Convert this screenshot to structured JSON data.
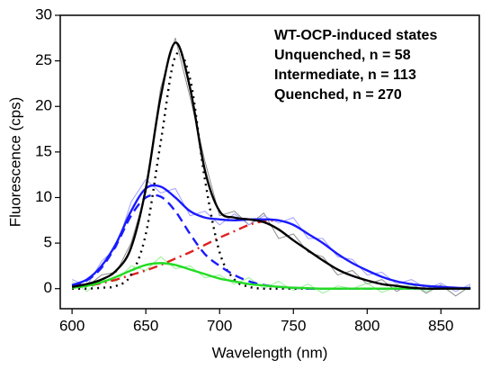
{
  "chart_data": {
    "type": "line",
    "xlabel": "Wavelength (nm)",
    "ylabel": "Fluorescence (cps)",
    "xlim": [
      592,
      876
    ],
    "ylim": [
      -2.2,
      30
    ],
    "xticks": [
      600,
      650,
      700,
      750,
      800,
      850
    ],
    "yticks": [
      0,
      5,
      10,
      15,
      20,
      25,
      30
    ],
    "legend": {
      "title": "WT-OCP-induced states",
      "entries": [
        {
          "text": "Unquenched, n = 58",
          "color": "#000000"
        },
        {
          "text": "Intermediate, n = 113",
          "color": "#1a1aff"
        },
        {
          "text": "Quenched, n =  270",
          "color": "#22dd22"
        }
      ]
    },
    "x": [
      600,
      610,
      620,
      630,
      640,
      650,
      660,
      670,
      680,
      690,
      700,
      710,
      720,
      730,
      740,
      750,
      760,
      770,
      780,
      790,
      800,
      810,
      820,
      830,
      840,
      850,
      860,
      870
    ],
    "series": [
      {
        "color": "#8c8c8c",
        "style": "raw",
        "values": [
          0.5,
          0.2,
          1.5,
          1.8,
          5,
          10.5,
          22,
          27.5,
          21,
          14,
          8,
          8.5,
          7,
          8.3,
          5.5,
          6,
          4,
          3.5,
          1.5,
          2,
          0.5,
          1,
          -0.3,
          0.6,
          -0.5,
          0.4,
          -0.8,
          0.3
        ]
      },
      {
        "color": "#a0a0ff",
        "style": "raw",
        "values": [
          1,
          0.3,
          3,
          4.5,
          9.5,
          12,
          10.5,
          11,
          8,
          8.5,
          7,
          8.2,
          7,
          8,
          7.2,
          7.8,
          5.5,
          5.5,
          3.5,
          3.2,
          1.5,
          1.8,
          0.5,
          1,
          0,
          0.6,
          -0.3,
          0.5
        ]
      },
      {
        "color": "#99ee99",
        "style": "raw",
        "values": [
          0.8,
          -0.3,
          1,
          0.8,
          2.5,
          2,
          3.5,
          2.2,
          2.5,
          1.2,
          1.5,
          0.5,
          1.2,
          0,
          0.8,
          -0.2,
          0.5,
          -0.5,
          0.3,
          0,
          0.6,
          -0.4,
          0.2,
          0.4,
          -0.3,
          0.3,
          0,
          0.2
        ]
      },
      {
        "color": "#e02020",
        "style": "dashdot",
        "values": [
          0.1,
          0.3,
          0.6,
          1,
          1.5,
          2,
          2.6,
          3.3,
          4,
          4.8,
          5.6,
          6.3,
          7,
          7.4,
          7.5,
          null,
          null,
          null,
          null,
          null,
          null,
          null,
          null,
          null,
          null,
          null,
          null,
          null
        ]
      },
      {
        "color": "#000000",
        "style": "dotted",
        "values": [
          0,
          0,
          0.1,
          0.3,
          1.5,
          6,
          16,
          25.5,
          23,
          12,
          4,
          1,
          0.2,
          0,
          0,
          0,
          0,
          0,
          0,
          0,
          0,
          0,
          0,
          0,
          0,
          0,
          0,
          0
        ]
      },
      {
        "color": "#1a1aff",
        "style": "dashed",
        "values": [
          0.3,
          0.9,
          2.3,
          4.8,
          8,
          10,
          10.1,
          8.5,
          6,
          3.8,
          2.5,
          1.5,
          0.8,
          0.4,
          0.2,
          0.1,
          0,
          0,
          0,
          0,
          0,
          0,
          0,
          0,
          0,
          0,
          0,
          0
        ]
      },
      {
        "color": "#22dd22",
        "style": "solid",
        "values": [
          0.1,
          0.3,
          0.7,
          1.3,
          2,
          2.6,
          2.8,
          2.6,
          2.1,
          1.6,
          1.1,
          0.8,
          0.5,
          0.35,
          0.2,
          0.1,
          0.05,
          0,
          0,
          0,
          0,
          0,
          0,
          0,
          0,
          0,
          0,
          0
        ]
      },
      {
        "color": "#1a1aff",
        "style": "solid",
        "values": [
          0.4,
          1,
          2.5,
          5,
          8.5,
          11,
          11.2,
          10,
          8.5,
          7.8,
          7.6,
          7.5,
          7.6,
          7.6,
          7.5,
          7,
          6,
          5,
          3.8,
          2.8,
          2,
          1.3,
          0.8,
          0.5,
          0.3,
          0.2,
          0.1,
          0.05
        ]
      },
      {
        "color": "#000000",
        "style": "solid",
        "values": [
          0.2,
          0.5,
          1,
          2,
          4.5,
          11,
          21,
          27,
          22,
          13,
          8.5,
          7.8,
          7.6,
          7.3,
          6.5,
          5.3,
          4.2,
          3.1,
          2.1,
          1.4,
          0.9,
          0.5,
          0.3,
          0.1,
          0,
          0,
          0,
          0
        ]
      }
    ]
  }
}
